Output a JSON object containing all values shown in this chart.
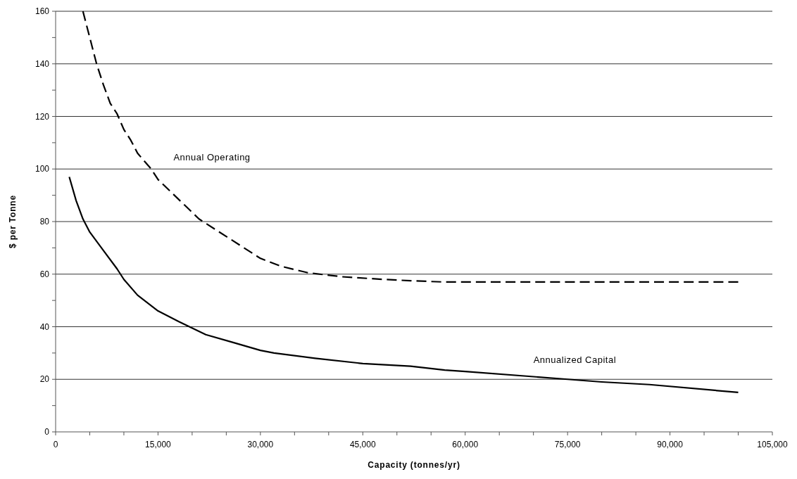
{
  "chart_data": {
    "type": "line",
    "xlabel": "Capacity (tonnes/yr)",
    "ylabel": "$ per Tonne",
    "xlim": [
      0,
      105000
    ],
    "ylim": [
      0,
      160
    ],
    "xticks": [
      {
        "value": 0,
        "label": "0"
      },
      {
        "value": 5000,
        "label": null
      },
      {
        "value": 10000,
        "label": null
      },
      {
        "value": 15000,
        "label": "15,000"
      },
      {
        "value": 20000,
        "label": null
      },
      {
        "value": 25000,
        "label": null
      },
      {
        "value": 30000,
        "label": "30,000"
      },
      {
        "value": 35000,
        "label": null
      },
      {
        "value": 40000,
        "label": null
      },
      {
        "value": 45000,
        "label": "45,000"
      },
      {
        "value": 50000,
        "label": null
      },
      {
        "value": 55000,
        "label": null
      },
      {
        "value": 60000,
        "label": "60,000"
      },
      {
        "value": 65000,
        "label": null
      },
      {
        "value": 70000,
        "label": null
      },
      {
        "value": 75000,
        "label": "75,000"
      },
      {
        "value": 80000,
        "label": null
      },
      {
        "value": 85000,
        "label": null
      },
      {
        "value": 90000,
        "label": "90,000"
      },
      {
        "value": 95000,
        "label": null
      },
      {
        "value": 100000,
        "label": null
      },
      {
        "value": 105000,
        "label": "105,000"
      }
    ],
    "yticks": [
      0,
      {
        "value": 10,
        "label": null
      },
      20,
      {
        "value": 30,
        "label": null
      },
      40,
      {
        "value": 50,
        "label": null
      },
      60,
      {
        "value": 70,
        "label": null
      },
      80,
      {
        "value": 90,
        "label": null
      },
      100,
      {
        "value": 110,
        "label": null
      },
      120,
      {
        "value": 130,
        "label": null
      },
      140,
      {
        "value": 150,
        "label": null
      },
      160
    ],
    "grid": "y",
    "marker": "none",
    "series": [
      {
        "name": "Annualized Capital",
        "color": "#000000",
        "line_style": "solid",
        "x": [
          2000,
          3000,
          4000,
          5000,
          7000,
          9000,
          10000,
          12000,
          15000,
          18000,
          22000,
          26000,
          30000,
          32000,
          38000,
          45000,
          52000,
          57000,
          60000,
          70000,
          75000,
          80000,
          87000,
          100000
        ],
        "values": [
          97,
          88,
          81,
          76,
          69,
          62,
          58,
          52,
          46,
          42,
          37,
          34,
          31,
          30,
          28,
          26,
          25,
          23.5,
          23,
          21,
          20,
          19,
          18,
          15
        ]
      },
      {
        "name": "Annual Operating",
        "color": "#000000",
        "line_style": "dashed",
        "x": [
          4000,
          5000,
          6000,
          7000,
          8000,
          9000,
          10000,
          11000,
          12000,
          14000,
          15000,
          17000,
          19000,
          21000,
          24000,
          27000,
          30000,
          33000,
          37000,
          42000,
          48000,
          52000,
          57000,
          100000
        ],
        "values": [
          160,
          150,
          140,
          132,
          125,
          121,
          115,
          111,
          106,
          100,
          96,
          91,
          86,
          81,
          76,
          71,
          66,
          63,
          60.5,
          59,
          58,
          57.5,
          57,
          57
        ]
      }
    ]
  }
}
